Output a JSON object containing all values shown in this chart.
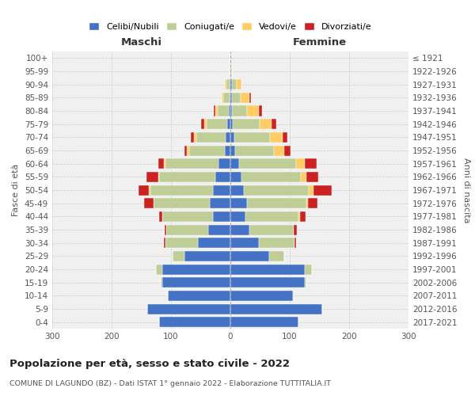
{
  "age_groups": [
    "0-4",
    "5-9",
    "10-14",
    "15-19",
    "20-24",
    "25-29",
    "30-34",
    "35-39",
    "40-44",
    "45-49",
    "50-54",
    "55-59",
    "60-64",
    "65-69",
    "70-74",
    "75-79",
    "80-84",
    "85-89",
    "90-94",
    "95-99",
    "100+"
  ],
  "birth_years": [
    "2017-2021",
    "2012-2016",
    "2007-2011",
    "2002-2006",
    "1997-2001",
    "1992-1996",
    "1987-1991",
    "1982-1986",
    "1977-1981",
    "1972-1976",
    "1967-1971",
    "1962-1966",
    "1957-1961",
    "1952-1956",
    "1947-1951",
    "1942-1946",
    "1937-1941",
    "1932-1936",
    "1927-1931",
    "1922-1926",
    "≤ 1921"
  ],
  "maschi": {
    "celibi": [
      120,
      140,
      105,
      115,
      115,
      78,
      55,
      38,
      30,
      35,
      30,
      25,
      20,
      10,
      8,
      5,
      3,
      2,
      2,
      0,
      0
    ],
    "coniugati": [
      0,
      0,
      1,
      2,
      10,
      20,
      55,
      70,
      85,
      95,
      105,
      95,
      90,
      60,
      50,
      35,
      18,
      10,
      5,
      1,
      0
    ],
    "vedovi": [
      0,
      0,
      0,
      0,
      0,
      0,
      0,
      0,
      0,
      0,
      2,
      2,
      2,
      3,
      4,
      4,
      4,
      3,
      2,
      0,
      0
    ],
    "divorziati": [
      0,
      0,
      0,
      0,
      0,
      0,
      2,
      3,
      5,
      15,
      18,
      20,
      10,
      5,
      5,
      5,
      3,
      0,
      0,
      0,
      0
    ]
  },
  "femmine": {
    "nubili": [
      115,
      155,
      105,
      125,
      125,
      65,
      48,
      32,
      25,
      28,
      22,
      18,
      15,
      8,
      6,
      4,
      3,
      2,
      2,
      0,
      0
    ],
    "coniugate": [
      0,
      0,
      1,
      3,
      12,
      25,
      60,
      75,
      90,
      100,
      110,
      100,
      95,
      65,
      60,
      45,
      25,
      15,
      8,
      1,
      0
    ],
    "vedove": [
      0,
      0,
      0,
      0,
      0,
      0,
      0,
      0,
      2,
      3,
      8,
      10,
      15,
      18,
      22,
      20,
      20,
      15,
      8,
      1,
      0
    ],
    "divorziate": [
      0,
      0,
      0,
      0,
      0,
      1,
      3,
      5,
      10,
      15,
      30,
      20,
      20,
      10,
      8,
      8,
      5,
      2,
      0,
      0,
      0
    ]
  },
  "colors": {
    "celibi": "#4472C4",
    "coniugati": "#BFCE96",
    "vedovi": "#FFCC66",
    "divorziati": "#CC2222"
  },
  "title": "Popolazione per età, sesso e stato civile - 2022",
  "subtitle": "COMUNE DI LAGUNDO (BZ) - Dati ISTAT 1° gennaio 2022 - Elaborazione TUTTITALIA.IT",
  "xlabel_left": "Maschi",
  "xlabel_right": "Femmine",
  "ylabel_left": "Fasce di età",
  "ylabel_right": "Anni di nascita",
  "xlim": 300,
  "bg_color": "#ffffff",
  "plot_bg": "#f0f0f0"
}
